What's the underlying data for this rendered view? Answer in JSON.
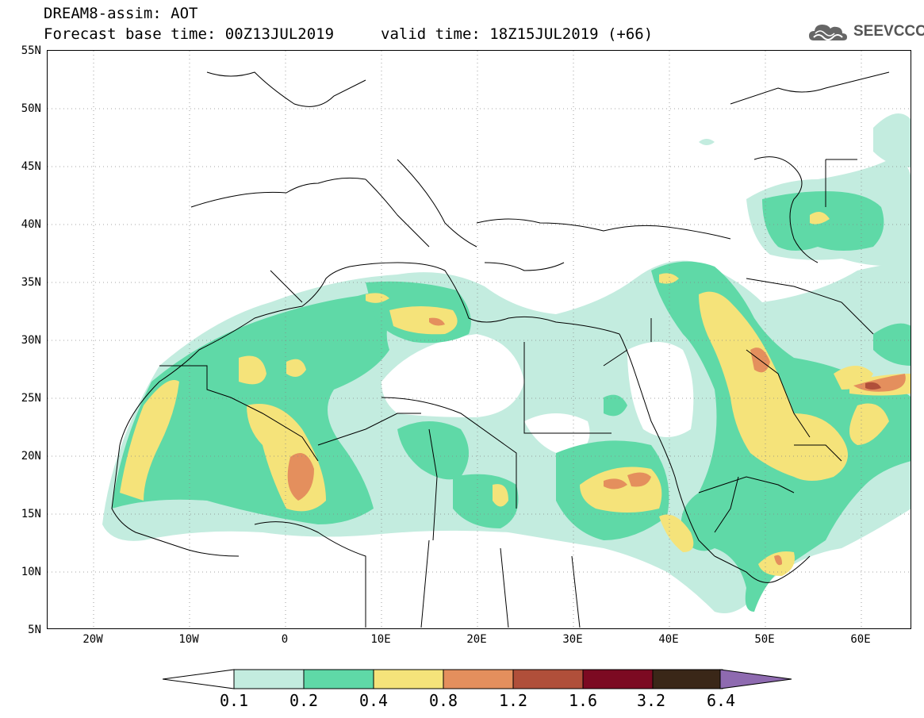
{
  "header": {
    "title_line_1": "DREAM8-assim: AOT",
    "title_line_2": "Forecast base time: 00Z13JUL2019",
    "valid_time": "valid time: 18Z15JUL2019 (+66)",
    "logo_text": "SEEVCCC"
  },
  "axes": {
    "lat_labels": [
      "55N",
      "50N",
      "45N",
      "40N",
      "35N",
      "30N",
      "25N",
      "20N",
      "15N",
      "10N",
      "5N"
    ],
    "lon_labels": [
      "20W",
      "10W",
      "0",
      "10E",
      "20E",
      "30E",
      "40E",
      "50E",
      "60E"
    ]
  },
  "map": {
    "extent": {
      "lon_min": -25,
      "lon_max": 65,
      "lat_min": 5,
      "lat_max": 55
    },
    "gridlines": "dotted every 5 degrees",
    "field": "AOT"
  },
  "colorbar": {
    "labels": [
      "0.1",
      "0.2",
      "0.4",
      "0.8",
      "1.2",
      "1.6",
      "3.2",
      "6.4"
    ],
    "colors": [
      "#ffffff",
      "#c3ecdf",
      "#5fd9a7",
      "#f5e37a",
      "#e48f5d",
      "#b04f3a",
      "#7c0a22",
      "#3a2718",
      "#8e6ab0"
    ]
  }
}
